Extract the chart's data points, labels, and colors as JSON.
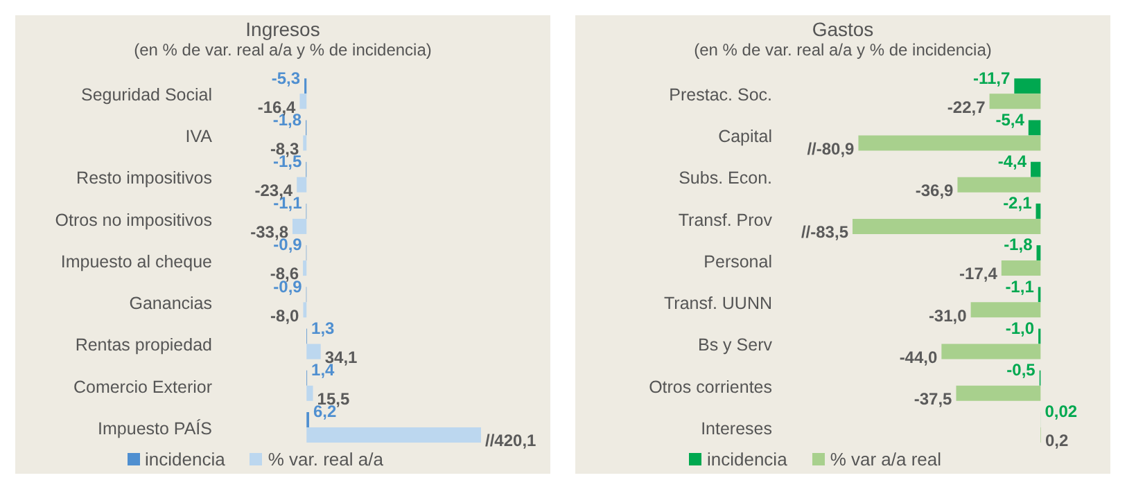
{
  "chart_data": [
    {
      "type": "bar",
      "orientation": "horizontal",
      "title": "Ingresos",
      "subtitle": "(en % de var. real a/a y % de incidencia)",
      "categories": [
        "Seguridad Social",
        "IVA",
        "Resto impositivos",
        "Otros no impositivos",
        "Impuesto al cheque",
        "Ganancias",
        "Rentas propiedad",
        "Comercio Exterior",
        "Impuesto PAÍS"
      ],
      "tick_labels": "y",
      "legend": "bottom",
      "grid": false,
      "series": [
        {
          "name": "incidencia",
          "color": "#4f8fd0",
          "values": [
            -5.3,
            -1.8,
            -1.5,
            -1.1,
            -0.9,
            -0.9,
            1.3,
            1.4,
            6.2
          ],
          "value_labels": [
            "-5,3",
            "-1,8",
            "-1,5",
            "-1,1",
            "-0,9",
            "-0,9",
            "1,3",
            "1,4",
            "6,2"
          ]
        },
        {
          "name": "% var. real a/a",
          "color": "#bcd7ef",
          "values": [
            -16.4,
            -8.3,
            -23.4,
            -33.8,
            -8.6,
            -8.0,
            34.1,
            15.5,
            420.1
          ],
          "value_labels": [
            "-16,4",
            "-8,3",
            "-23,4",
            "-33,8",
            "-8,6",
            "-8,0",
            "34,1",
            "15,5",
            "//420,1"
          ]
        }
      ]
    },
    {
      "type": "bar",
      "orientation": "horizontal",
      "title": "Gastos",
      "subtitle": "(en % de var. real a/a y % de incidencia)",
      "categories": [
        "Prestac. Soc.",
        "Capital",
        "Subs. Econ.",
        "Transf. Prov",
        "Personal",
        "Transf. UUNN",
        "Bs y Serv",
        "Otros corrientes",
        "Intereses"
      ],
      "tick_labels": "y",
      "legend": "bottom",
      "grid": false,
      "series": [
        {
          "name": "incidencia",
          "color": "#00a850",
          "values": [
            -11.7,
            -5.4,
            -4.4,
            -2.1,
            -1.8,
            -1.1,
            -1.0,
            -0.5,
            0.02
          ],
          "value_labels": [
            "-11,7",
            "-5,4",
            "-4,4",
            "-2,1",
            "-1,8",
            "-1,1",
            "-1,0",
            "-0,5",
            "0,02"
          ]
        },
        {
          "name": "% var a/a real",
          "color": "#a8d08d",
          "values": [
            -22.7,
            -80.9,
            -36.9,
            -83.5,
            -17.4,
            -31.0,
            -44.0,
            -37.5,
            0.2
          ],
          "value_labels": [
            "-22,7",
            "//-80,9",
            "-36,9",
            "//-83,5",
            "-17,4",
            "-31,0",
            "-44,0",
            "-37,5",
            "0,2"
          ]
        }
      ]
    }
  ]
}
